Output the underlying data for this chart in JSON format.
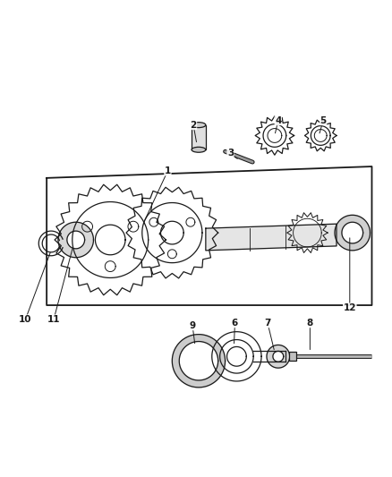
{
  "bg_color": "#ffffff",
  "line_color": "#1a1a1a",
  "figsize": [
    4.38,
    5.33
  ],
  "dpi": 100,
  "annotations": [
    [
      "1",
      187,
      190,
      160,
      248
    ],
    [
      "2",
      216,
      138,
      220,
      160
    ],
    [
      "3",
      258,
      170,
      268,
      178
    ],
    [
      "4",
      312,
      133,
      308,
      150
    ],
    [
      "5",
      363,
      133,
      358,
      150
    ],
    [
      "6",
      263,
      362,
      262,
      388
    ],
    [
      "7",
      300,
      362,
      308,
      395
    ],
    [
      "8",
      348,
      362,
      348,
      395
    ],
    [
      "9",
      215,
      365,
      218,
      388
    ],
    [
      "10",
      26,
      358,
      55,
      280
    ],
    [
      "11",
      58,
      358,
      80,
      275
    ],
    [
      "12",
      393,
      345,
      393,
      263
    ]
  ]
}
